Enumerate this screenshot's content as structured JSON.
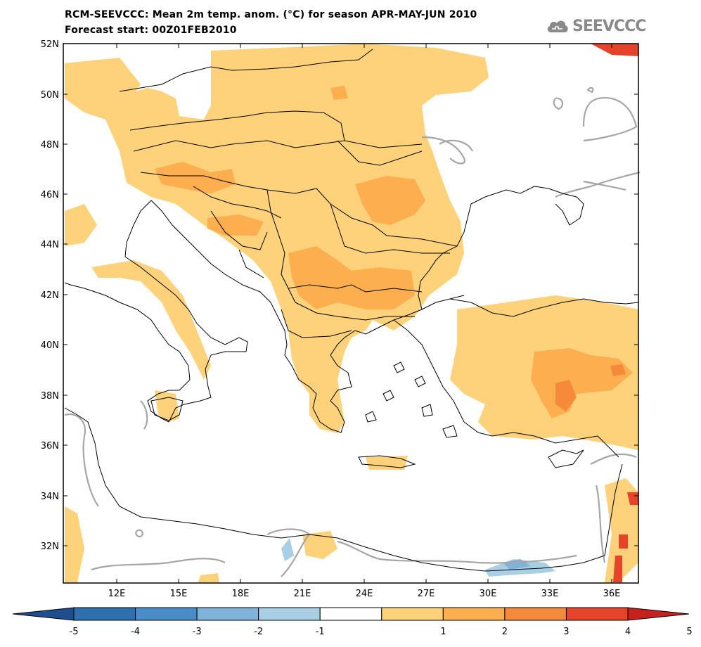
{
  "header": {
    "title_line1": "RCM-SEEVCCC: Mean 2m temp. anom. (°C) for season APR-MAY-JUN 2010",
    "title_line2": "Forecast start: 00Z01FEB2010",
    "logo_text": "SEEVCCC"
  },
  "map": {
    "lon_ticks": [
      "12E",
      "15E",
      "18E",
      "21E",
      "24E",
      "27E",
      "30E",
      "33E",
      "36E"
    ],
    "lat_ticks": [
      "52N",
      "50N",
      "48N",
      "46N",
      "44N",
      "42N",
      "40N",
      "38N",
      "36N",
      "34N",
      "32N"
    ]
  },
  "colorbar": {
    "labels": [
      "-5",
      "-4",
      "-3",
      "-2",
      "-1",
      "1",
      "2",
      "3",
      "4",
      "5"
    ],
    "colors": [
      "#1f4e8c",
      "#2e6fae",
      "#4a8cc8",
      "#7fb3dc",
      "#a9cfe5",
      "#ffffff",
      "#fdd27a",
      "#fdae4f",
      "#f68a3b",
      "#e5432a",
      "#c6211f"
    ]
  }
}
